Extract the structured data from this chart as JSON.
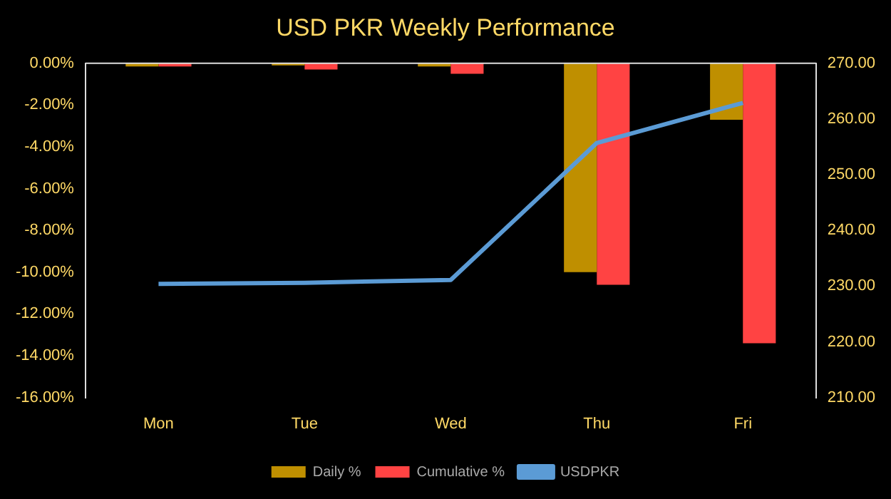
{
  "chart_data": {
    "type": "bar",
    "title": "USD PKR Weekly Performance",
    "categories": [
      "Mon",
      "Tue",
      "Wed",
      "Thu",
      "Fri"
    ],
    "series": [
      {
        "name": "Daily %",
        "color": "#bf8f00",
        "values": [
          -0.15,
          -0.1,
          -0.15,
          -10.0,
          -2.7
        ]
      },
      {
        "name": "Cumulative %",
        "color": "#ff4343",
        "values": [
          -0.15,
          -0.3,
          -0.5,
          -10.6,
          -13.4
        ]
      },
      {
        "name": "USDPKR",
        "type": "line",
        "axis": "y2",
        "color": "#5b9bd5",
        "values": [
          230.4,
          230.6,
          231.1,
          255.7,
          262.9
        ]
      }
    ],
    "ylim": [
      -16,
      0
    ],
    "yticks": [
      {
        "value": 0,
        "label": "0.00%"
      },
      {
        "value": -2,
        "label": "-2.00%"
      },
      {
        "value": -4,
        "label": "-4.00%"
      },
      {
        "value": -6,
        "label": "-6.00%"
      },
      {
        "value": -8,
        "label": "-8.00%"
      },
      {
        "value": -10,
        "label": "-10.00%"
      },
      {
        "value": -12,
        "label": "-12.00%"
      },
      {
        "value": -14,
        "label": "-14.00%"
      },
      {
        "value": -16,
        "label": "-16.00%"
      }
    ],
    "y2lim": [
      210,
      270
    ],
    "y2ticks": [
      {
        "value": 210,
        "label": "210.00"
      },
      {
        "value": 220,
        "label": "220.00"
      },
      {
        "value": 230,
        "label": "230.00"
      },
      {
        "value": 240,
        "label": "240.00"
      },
      {
        "value": 250,
        "label": "250.00"
      },
      {
        "value": 260,
        "label": "260.00"
      },
      {
        "value": 270,
        "label": "270.00"
      }
    ],
    "grid": false,
    "legend": "bottom",
    "marker": "none"
  }
}
